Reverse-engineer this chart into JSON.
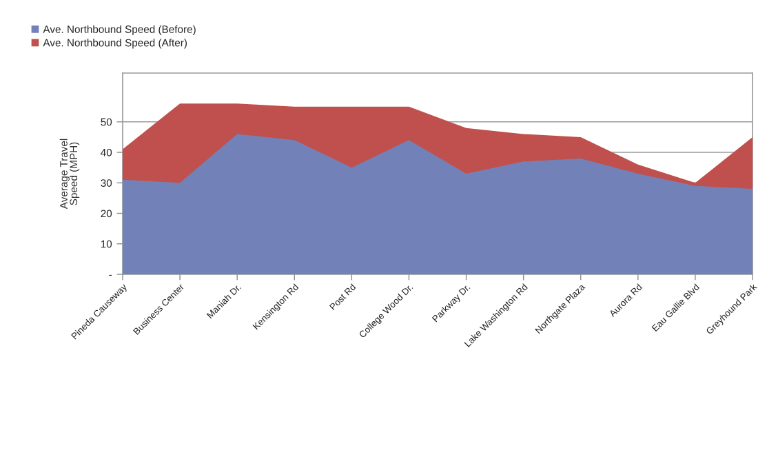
{
  "chart_data": {
    "type": "area",
    "categories": [
      "Pineda Causeway",
      "Business Center",
      "Maniah Dr.",
      "Kensington Rd",
      "Post Rd",
      "College Wood Dr.",
      "Parkway Dr.",
      "Lake Washington Rd",
      "Northgate Plaza",
      "Aurora Rd",
      "Eau Gallie Blvd",
      "Greyhound Park"
    ],
    "series": [
      {
        "name": "Ave. Northbound Speed (Before)",
        "color": "#7282b8",
        "values": [
          31,
          30,
          46,
          44,
          35,
          44,
          33,
          37,
          38,
          33,
          29,
          28
        ]
      },
      {
        "name": "Ave. Northbound Speed (After)",
        "color": "#c0504d",
        "values": [
          41,
          56,
          56,
          55,
          55,
          55,
          48,
          46,
          45,
          36,
          30,
          45
        ]
      }
    ],
    "ylabel": "Average Travel\nSpeed (MPH)",
    "ylim": [
      0,
      66
    ],
    "yticks": [
      {
        "value": 0,
        "label": "-"
      },
      10,
      20,
      30,
      40,
      50
    ],
    "grid": "y",
    "legend": "top left"
  }
}
